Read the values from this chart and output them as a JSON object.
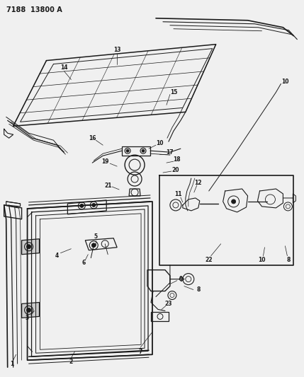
{
  "title": "7188  13800 A",
  "bg_color": "#f0f0f0",
  "line_color": "#1a1a1a",
  "fig_width": 4.29,
  "fig_height": 5.33,
  "dpi": 100
}
